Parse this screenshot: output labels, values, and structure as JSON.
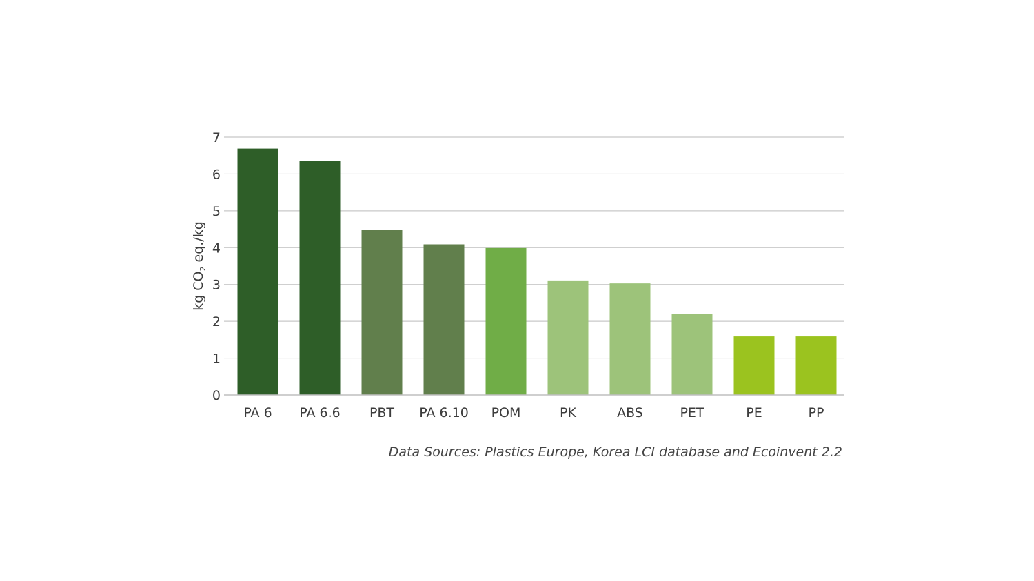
{
  "chart_data": {
    "type": "bar",
    "categories": [
      "PA 6",
      "PA 6.6",
      "PBT",
      "PA 6.10",
      "POM",
      "PK",
      "ABS",
      "PET",
      "PE",
      "PP"
    ],
    "values": [
      6.68,
      6.34,
      4.48,
      4.08,
      3.98,
      3.1,
      3.02,
      2.19,
      1.58,
      1.58
    ],
    "bar_colors": [
      "#2e5e28",
      "#2e5e28",
      "#617f4c",
      "#617f4c",
      "#70ad47",
      "#9dc37a",
      "#9dc37a",
      "#9dc37a",
      "#9bc31f",
      "#9bc31f"
    ],
    "ylabel_main": "kg CO",
    "ylabel_sub": "2",
    "ylabel_rest": " eq./kg",
    "ylim": [
      0,
      7
    ],
    "yticks": [
      "0",
      "1",
      "2",
      "3",
      "4",
      "5",
      "6",
      "7"
    ],
    "grid": true,
    "grid_color": "#c8c8c8",
    "axis_color": "#bfbfbf"
  },
  "source_note": "Data Sources: Plastics Europe, Korea LCI database and Ecoinvent 2.2"
}
